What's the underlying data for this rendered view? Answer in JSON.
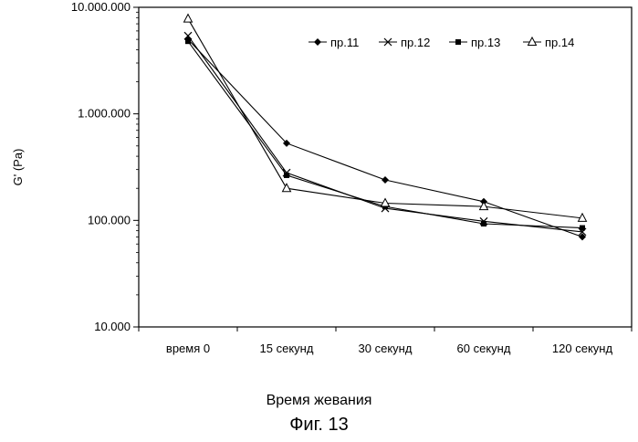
{
  "chart_data": {
    "type": "line",
    "ylabel": "G' (Pa)",
    "xlabel": "Время жевания",
    "caption": "Фиг. 13",
    "yscale": "log",
    "ylim": [
      10000,
      10000000
    ],
    "yticks": [
      {
        "value": 10000000,
        "label": "10.000.000"
      },
      {
        "value": 1000000,
        "label": "1.000.000"
      },
      {
        "value": 100000,
        "label": "100.000"
      },
      {
        "value": 10000,
        "label": "10.000"
      }
    ],
    "categories": [
      "время 0",
      "15 секунд",
      "30 секунд",
      "60 секунд",
      "120 секунд"
    ],
    "legend_position": "top-right",
    "grid": false,
    "series": [
      {
        "name": "пр.11",
        "marker": "diamond",
        "values": [
          5000000,
          530000,
          240000,
          150000,
          70000
        ]
      },
      {
        "name": "пр.12",
        "marker": "x",
        "values": [
          5400000,
          280000,
          130000,
          98000,
          78000
        ]
      },
      {
        "name": "пр.13",
        "marker": "square",
        "values": [
          4800000,
          265000,
          135000,
          93000,
          85000
        ]
      },
      {
        "name": "пр.14",
        "marker": "triangle",
        "values": [
          7800000,
          200000,
          145000,
          135000,
          105000
        ]
      }
    ]
  }
}
